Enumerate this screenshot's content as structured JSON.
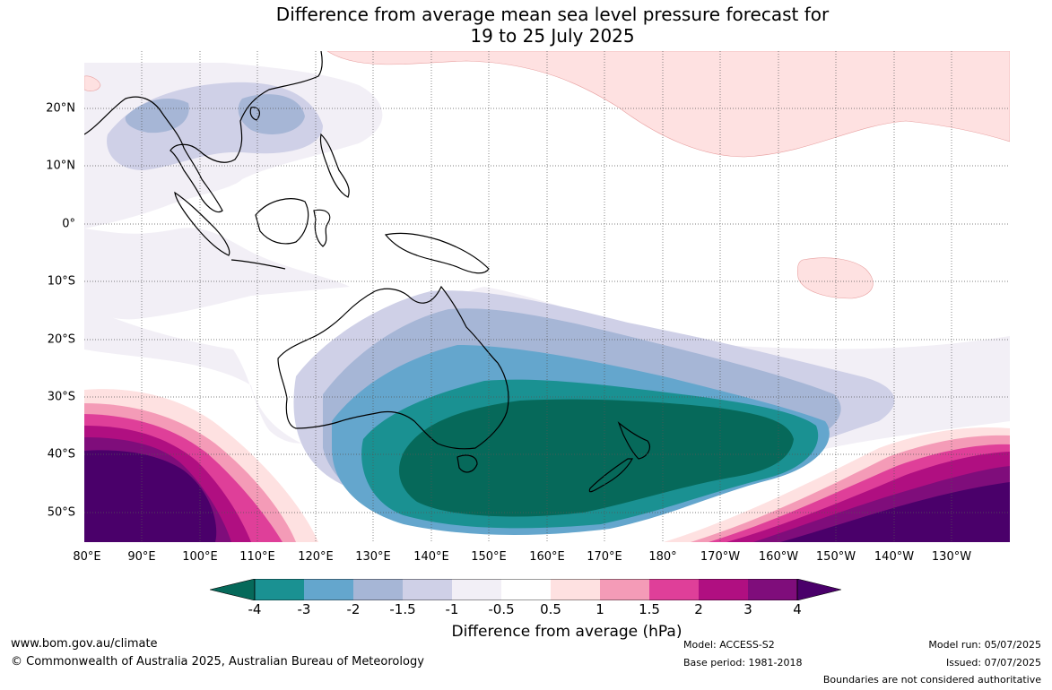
{
  "title": {
    "line1": "Difference from average mean sea level pressure forecast for",
    "line2": "19 to 25 July 2025"
  },
  "map": {
    "region": "Indian Ocean / Maritime Continent / Australia / South-west Pacific",
    "lat_labels": [
      "20°N",
      "10°N",
      "0°",
      "10°S",
      "20°S",
      "30°S",
      "40°S",
      "50°S"
    ],
    "lon_labels": [
      "80°E",
      "90°E",
      "100°E",
      "110°E",
      "120°E",
      "130°E",
      "140°E",
      "150°E",
      "160°E",
      "170°E",
      "180°",
      "170°W",
      "160°W",
      "150°W",
      "140°W",
      "130°W"
    ],
    "grid": true,
    "features": {
      "strong_negative_anomaly": "south of Australia and around New Zealand (below -4 hPa)",
      "strong_positive_anomaly_west": "southern Indian Ocean south-west of Australia (above 4 hPa)",
      "strong_positive_anomaly_east": "south-east Pacific (above 4 hPa)",
      "weak_positive_anomaly": "north Pacific near 20°N and near 10°S 160°W"
    }
  },
  "colorbar": {
    "ticks": [
      "-4",
      "-3",
      "-2",
      "-1.5",
      "-1",
      "-0.5",
      "0.5",
      "1",
      "1.5",
      "2",
      "3",
      "4"
    ],
    "colors": [
      "#06695a",
      "#1a9192",
      "#64a6cd",
      "#a6b6d6",
      "#cfd0e7",
      "#f2eff6",
      "#ffffff",
      "#fee1e1",
      "#f49bb7",
      "#df3f99",
      "#b00f81",
      "#7f0d7b",
      "#4a006a"
    ],
    "label": "Difference from average (hPa)"
  },
  "footer": {
    "website": "www.bom.gov.au/climate",
    "copyright": "© Commonwealth of Australia 2025, Australian Bureau of Meteorology",
    "model": "Model: ACCESS-S2",
    "base_period": "Base period: 1981-2018",
    "model_run": "Model run: 05/07/2025",
    "issued": "Issued: 07/07/2025",
    "disclaimer": "Boundaries are not considered authoritative"
  }
}
